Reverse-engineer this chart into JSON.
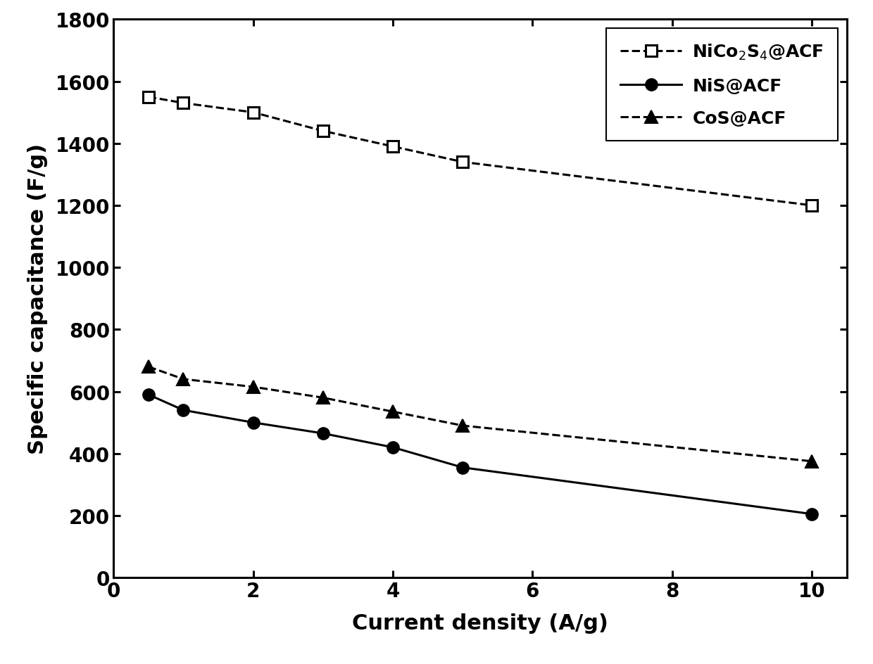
{
  "NiCo2S4_ACF": {
    "x": [
      0.5,
      1,
      2,
      3,
      4,
      5,
      10
    ],
    "y": [
      1550,
      1530,
      1500,
      1440,
      1390,
      1340,
      1200
    ]
  },
  "NiS_ACF": {
    "x": [
      0.5,
      1,
      2,
      3,
      4,
      5,
      10
    ],
    "y": [
      590,
      540,
      500,
      465,
      420,
      355,
      205
    ]
  },
  "CoS_ACF": {
    "x": [
      0.5,
      1,
      2,
      3,
      4,
      5,
      10
    ],
    "y": [
      680,
      640,
      615,
      580,
      535,
      490,
      375
    ]
  },
  "xlabel": "Current density (A/g)",
  "ylabel": "Specific capacitance (F/g)",
  "xlim": [
    0,
    10.5
  ],
  "ylim": [
    0,
    1800
  ],
  "yticks": [
    0,
    200,
    400,
    600,
    800,
    1000,
    1200,
    1400,
    1600,
    1800
  ],
  "xticks": [
    0,
    2,
    4,
    6,
    8,
    10
  ],
  "legend_labels": [
    "NiCo$_2$S$_4$@ACF",
    "NiS@ACF",
    "CoS@ACF"
  ],
  "line_color": "#000000",
  "background_color": "#ffffff",
  "fontsize_labels": 22,
  "fontsize_ticks": 20,
  "fontsize_legend": 18,
  "linewidth": 2.2,
  "marker_size_square": 11,
  "marker_size_circle": 12,
  "marker_size_triangle": 13
}
